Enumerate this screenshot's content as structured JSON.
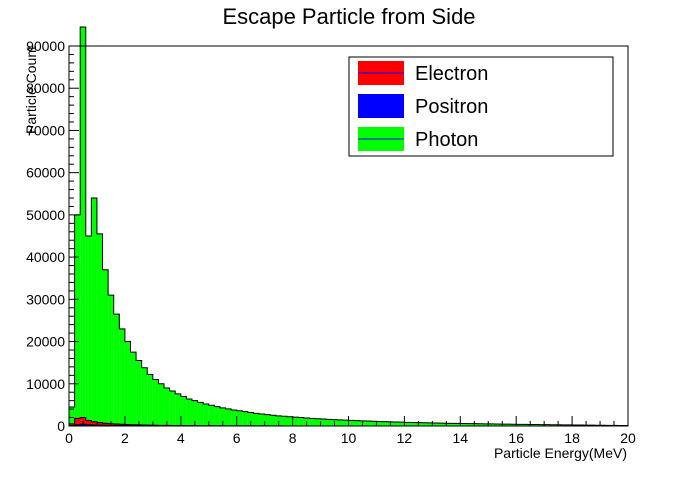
{
  "chart_data": {
    "type": "histogram",
    "title": "Escape Particle from Side",
    "xlabel": "Particle Energy(MeV)",
    "ylabel": "Particle Count",
    "xlim": [
      0,
      20
    ],
    "ylim": [
      0,
      90000
    ],
    "bin_width": 0.2,
    "x_ticks": [
      "0",
      "2",
      "4",
      "6",
      "8",
      "10",
      "12",
      "14",
      "16",
      "18",
      "20"
    ],
    "y_ticks": [
      "0",
      "10000",
      "20000",
      "30000",
      "40000",
      "50000",
      "60000",
      "70000",
      "80000",
      "90000"
    ],
    "grid": false,
    "legend_position": "top-right",
    "series": [
      {
        "name": "Photon",
        "color": "#00ff00",
        "values": [
          4500,
          50000,
          94500,
          45000,
          54000,
          45500,
          37000,
          31000,
          26500,
          23000,
          20000,
          17500,
          15500,
          13800,
          12200,
          11000,
          10000,
          9000,
          8300,
          7600,
          7000,
          6400,
          6000,
          5600,
          5200,
          4900,
          4600,
          4300,
          4050,
          3800,
          3600,
          3400,
          3200,
          3000,
          2850,
          2700,
          2550,
          2400,
          2300,
          2200,
          2100,
          2000,
          1900,
          1800,
          1720,
          1650,
          1580,
          1510,
          1450,
          1390,
          1330,
          1270,
          1220,
          1170,
          1120,
          1070,
          1030,
          990,
          950,
          910,
          870,
          830,
          800,
          770,
          740,
          710,
          680,
          650,
          630,
          610,
          590,
          570,
          550,
          530,
          510,
          490,
          470,
          450,
          430,
          410,
          390,
          375,
          360,
          345,
          330,
          315,
          300,
          285,
          270,
          255,
          240,
          225,
          210,
          195,
          180,
          165,
          150,
          135,
          120,
          105
        ]
      },
      {
        "name": "Electron",
        "color": "#ff0000",
        "values": [
          500,
          1800,
          2000,
          1300,
          1000,
          800,
          650,
          550,
          470,
          400,
          350,
          300,
          260,
          230,
          200,
          180,
          160,
          140,
          125,
          110,
          100,
          90,
          80,
          72,
          65,
          58,
          52,
          47,
          42,
          38,
          34,
          31,
          28,
          25,
          23,
          21,
          19,
          17,
          15,
          14,
          13,
          12,
          11,
          10,
          9,
          8,
          8,
          7,
          7,
          6,
          6,
          5,
          5,
          5,
          4,
          4,
          4,
          3,
          3,
          3,
          3,
          3,
          2,
          2,
          2,
          2,
          2,
          2,
          2,
          2,
          1,
          1,
          1,
          1,
          1,
          1,
          1,
          1,
          1,
          1,
          1,
          1,
          1,
          1,
          1,
          1,
          1,
          1,
          1,
          1,
          1,
          1,
          1,
          1,
          1,
          1,
          1,
          1,
          1,
          1
        ]
      },
      {
        "name": "Positron",
        "color": "#0000ff",
        "values": [
          100,
          300,
          400,
          300,
          250,
          200,
          180,
          160,
          140,
          120,
          110,
          100,
          90,
          80,
          75,
          70,
          65,
          60,
          55,
          50,
          46,
          42,
          39,
          36,
          33,
          30,
          28,
          26,
          24,
          22,
          21,
          20,
          19,
          18,
          17,
          16,
          15,
          14,
          13,
          12,
          12,
          11,
          11,
          10,
          10,
          9,
          9,
          9,
          8,
          8,
          8,
          7,
          7,
          7,
          6,
          6,
          6,
          6,
          5,
          5,
          5,
          5,
          5,
          5,
          4,
          4,
          4,
          4,
          4,
          4,
          4,
          4,
          4,
          4,
          4,
          4,
          4,
          4,
          4,
          4,
          4,
          4,
          4,
          4,
          4,
          4,
          4,
          4,
          4,
          4,
          4,
          4,
          4,
          4,
          4,
          4,
          4,
          4,
          4,
          4
        ]
      }
    ],
    "legend_entries": [
      "Electron",
      "Positron",
      "Photon"
    ]
  }
}
